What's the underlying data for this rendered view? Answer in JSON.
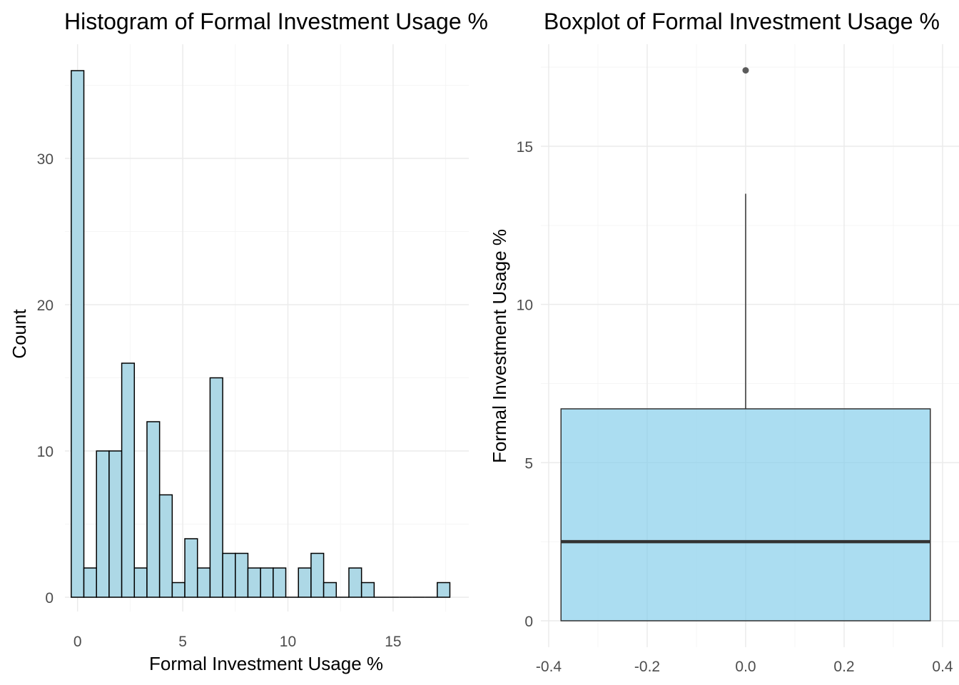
{
  "colors": {
    "bar_fill": "#add8e6",
    "bar_stroke": "#000000",
    "box_fill": "#87ceeb",
    "box_stroke": "#333333",
    "grid_major": "#ebebeb",
    "grid_minor": "#f5f5f5",
    "tick_text": "#4d4d4d",
    "title_text": "#000000"
  },
  "chart_data": [
    {
      "type": "bar",
      "title": "Histogram of Formal Investment Usage %",
      "xlabel": "Formal Investment Usage %",
      "ylabel": "Count",
      "bin_width": 0.6,
      "bin_centers": [
        0,
        0.6,
        1.2,
        1.8,
        2.4,
        3.0,
        3.6,
        4.2,
        4.8,
        5.4,
        6.0,
        6.6,
        7.2,
        7.8,
        8.4,
        9.0,
        9.6,
        10.2,
        10.8,
        11.4,
        12.0,
        12.6,
        13.2,
        13.8,
        14.4,
        15.0,
        15.6,
        16.2,
        16.8,
        17.4
      ],
      "values": [
        36,
        2,
        10,
        10,
        16,
        2,
        12,
        7,
        1,
        4,
        2,
        15,
        3,
        3,
        2,
        2,
        2,
        0,
        2,
        3,
        1,
        0,
        2,
        1,
        0,
        0,
        0,
        0,
        0,
        1
      ],
      "xlim": [
        -0.6,
        18.6
      ],
      "ylim": [
        0,
        36
      ],
      "x_ticks": [
        0,
        5,
        10,
        15
      ],
      "x_tick_labels": [
        "0",
        "5",
        "10",
        "15"
      ],
      "y_ticks": [
        0,
        10,
        20,
        30
      ],
      "y_tick_labels": [
        "0",
        "10",
        "20",
        "30"
      ],
      "grid": true
    },
    {
      "type": "boxplot",
      "title": "Boxplot of Formal Investment Usage %",
      "xlabel": "",
      "ylabel": "Formal Investment Usage %",
      "min": 0,
      "q1": 0,
      "median": 2.5,
      "q3": 6.7,
      "whisker_high": 13.5,
      "outliers": [
        17.4
      ],
      "box_x_range": [
        -0.375,
        0.375
      ],
      "xlim": [
        -0.4,
        0.4
      ],
      "ylim": [
        0,
        17.4
      ],
      "x_ticks": [
        -0.4,
        -0.2,
        0.0,
        0.2,
        0.4
      ],
      "x_tick_labels": [
        "-0.4",
        "-0.2",
        "0.0",
        "0.2",
        "0.4"
      ],
      "y_ticks": [
        0,
        5,
        10,
        15
      ],
      "y_tick_labels": [
        "0",
        "5",
        "10",
        "15"
      ],
      "grid": true
    }
  ]
}
